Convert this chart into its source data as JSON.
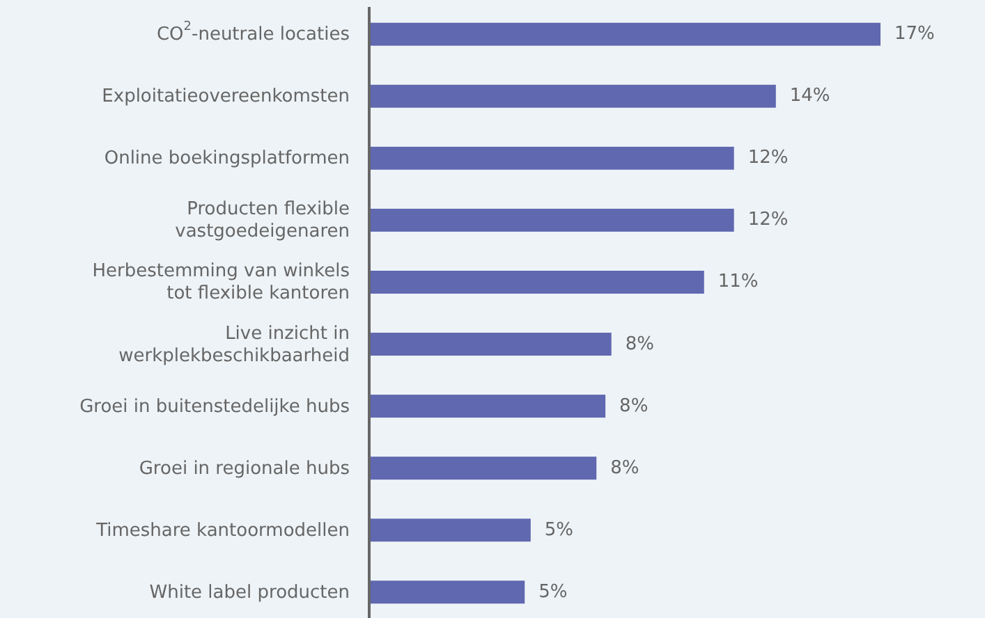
{
  "chart_data": {
    "type": "bar",
    "orientation": "horizontal",
    "categories": [
      "CO$^{2}$-neutrale locaties",
      "Exploitatieovereenkomsten",
      "Online boekingsplatformen",
      "Producten flexible\nvastgoedeigenaren",
      "Herbestemming van winkels\ntot flexible kantoren",
      "Live inzicht in\nwerkplekbeschikbaarheid",
      "Groei in buitenstedelijke hubs",
      "Groei in regionale hubs",
      "Timeshare kantoormodellen",
      "White label producten"
    ],
    "values": [
      17.1,
      13.6,
      12.2,
      12.2,
      11.2,
      8.1,
      7.9,
      7.6,
      5.4,
      5.2
    ],
    "value_labels": [
      "17%",
      "14%",
      "12%",
      "12%",
      "11%",
      "8%",
      "8%",
      "8%",
      "5%",
      "5%"
    ],
    "color": "#6068b0"
  }
}
